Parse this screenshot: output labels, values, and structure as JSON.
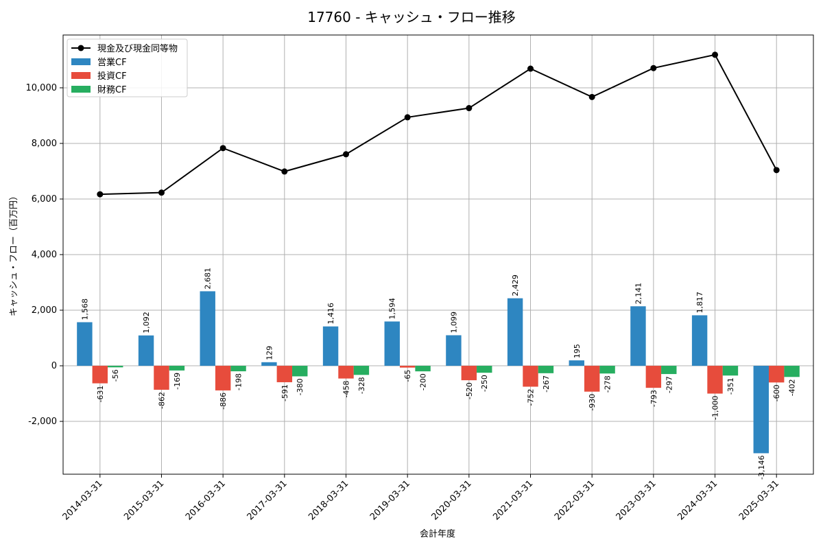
{
  "chart_data": {
    "type": "bar",
    "title": "17760 - キャッシュ・フロー推移",
    "xlabel": "会計年度",
    "ylabel": "キャッシュ・フロー（百万円）",
    "categories": [
      "2014-03-31",
      "2015-03-31",
      "2016-03-31",
      "2017-03-31",
      "2018-03-31",
      "2019-03-31",
      "2020-03-31",
      "2021-03-31",
      "2022-03-31",
      "2023-03-31",
      "2024-03-31",
      "2025-03-31"
    ],
    "ylim": [
      -3900,
      11900
    ],
    "yticks": [
      -2000,
      0,
      2000,
      4000,
      6000,
      8000,
      10000
    ],
    "ytick_labels": [
      "-2,000",
      "0",
      "2,000",
      "4,000",
      "6,000",
      "8,000",
      "10,000"
    ],
    "grid": true,
    "legend_position": "top-left",
    "series": [
      {
        "name": "営業CF",
        "kind": "bar",
        "color": "#2e86c1",
        "values": [
          1568,
          1092,
          2681,
          129,
          1416,
          1594,
          1099,
          2429,
          195,
          2141,
          1817,
          -3146
        ],
        "labels": [
          "1,568",
          "1,092",
          "2,681",
          "129",
          "1,416",
          "1,594",
          "1,099",
          "2,429",
          "195",
          "2,141",
          "1,817",
          "-3,146"
        ]
      },
      {
        "name": "投資CF",
        "kind": "bar",
        "color": "#e74c3c",
        "values": [
          -631,
          -862,
          -886,
          -591,
          -458,
          -65,
          -520,
          -752,
          -930,
          -793,
          -1000,
          -600
        ],
        "labels": [
          "-631",
          "-862",
          "-886",
          "-591",
          "-458",
          "-65",
          "-520",
          "-752",
          "-930",
          "-793",
          "-1,000",
          "-600"
        ]
      },
      {
        "name": "財務CF",
        "kind": "bar",
        "color": "#27ae60",
        "values": [
          -56,
          -169,
          -198,
          -380,
          -328,
          -200,
          -250,
          -267,
          -278,
          -297,
          -351,
          -402
        ],
        "labels": [
          "-56",
          "-169",
          "-198",
          "-380",
          "-328",
          "-200",
          "-250",
          "-267",
          "-278",
          "-297",
          "-351",
          "-402"
        ]
      },
      {
        "name": "現金及び現金同等物",
        "kind": "line",
        "color": "#000000",
        "values": [
          6170,
          6230,
          7830,
          6990,
          7610,
          8940,
          9270,
          10690,
          9670,
          10710,
          11190,
          7040
        ]
      }
    ]
  }
}
